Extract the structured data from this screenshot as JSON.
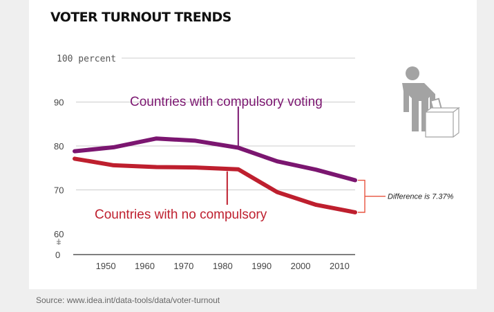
{
  "title": "VOTER TURNOUT TRENDS",
  "source": "Source: www.idea.int/data-tools/data/voter-turnout",
  "colors": {
    "compulsory": "#7b1670",
    "no_compulsory": "#be1f2e",
    "annotation": "#e8533f",
    "grid": "#cccccc",
    "figure": "#a3a3a3"
  },
  "icons": [
    "voter-figure-icon",
    "ballot-box-icon"
  ],
  "chart_data": {
    "type": "line",
    "ylabel": "100 percent",
    "yticks": [
      {
        "value": 90,
        "label": "90"
      },
      {
        "value": 80,
        "label": "80"
      },
      {
        "value": 70,
        "label": "70"
      },
      {
        "value": 60,
        "label": "60"
      }
    ],
    "ybreak": "0",
    "ylim": [
      60,
      100
    ],
    "xlim": [
      1942,
      2014
    ],
    "xticks": [
      1950,
      1960,
      1970,
      1980,
      1990,
      2000,
      2010
    ],
    "grid": true,
    "series": [
      {
        "name": "Countries with compulsory voting",
        "x": [
          1942,
          1952,
          1963,
          1973,
          1984,
          1994,
          2004,
          2014
        ],
        "y": [
          78.8,
          79.7,
          81.7,
          81.2,
          79.6,
          76.5,
          74.6,
          72.2
        ]
      },
      {
        "name": "Countries with no compulsory",
        "x": [
          1942,
          1952,
          1963,
          1973,
          1984,
          1994,
          2004,
          2014
        ],
        "y": [
          77.1,
          75.6,
          75.2,
          75.1,
          74.7,
          69.5,
          66.6,
          64.9
        ]
      }
    ],
    "annotation": "Difference is 7.37%"
  }
}
